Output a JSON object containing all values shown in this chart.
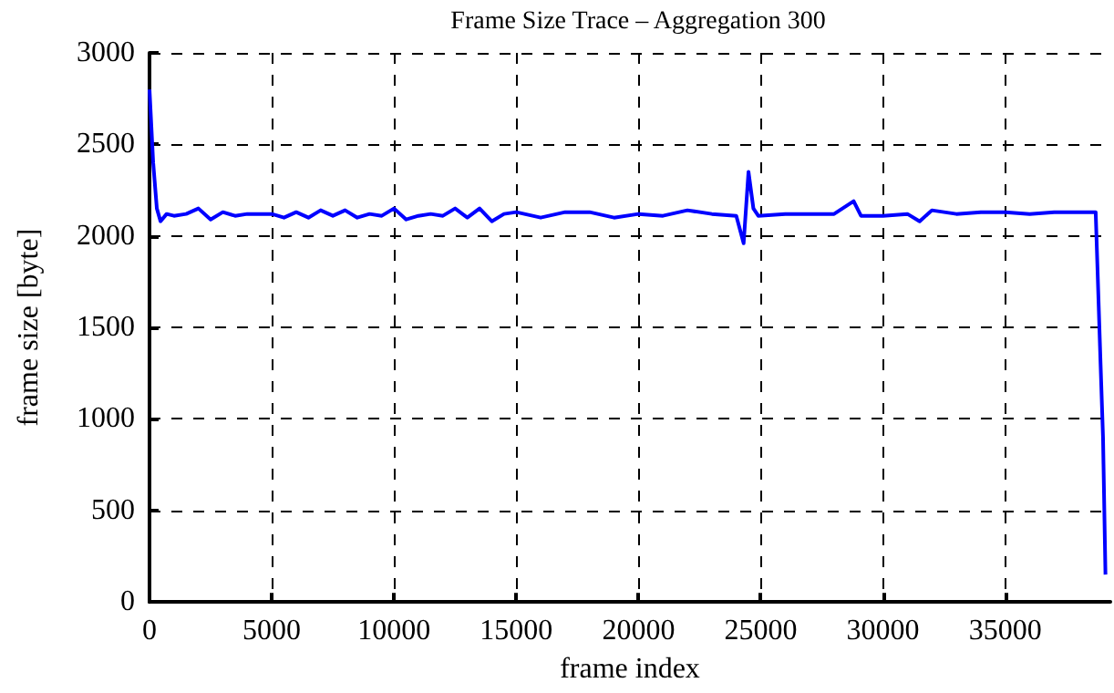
{
  "chart_data": {
    "type": "line",
    "title": "Frame Size Trace – Aggregation 300",
    "xlabel": "frame index",
    "ylabel": "frame size [byte]",
    "x": [
      0,
      150,
      300,
      450,
      700,
      1000,
      1500,
      2000,
      2500,
      3000,
      3500,
      4000,
      5000,
      5500,
      6000,
      6500,
      7000,
      7500,
      8000,
      8500,
      9000,
      9500,
      10000,
      10500,
      11000,
      11500,
      12000,
      12500,
      13000,
      13500,
      14000,
      14500,
      15000,
      16000,
      17000,
      18000,
      19000,
      20000,
      21000,
      22000,
      23000,
      24000,
      24300,
      24500,
      24700,
      24900,
      26000,
      27000,
      28000,
      28800,
      29100,
      30000,
      31000,
      31500,
      32000,
      33000,
      34000,
      35000,
      36000,
      37000,
      38000,
      38700,
      38900,
      39000,
      39100
    ],
    "series": [
      {
        "color": "#0000ff",
        "values": [
          2800,
          2400,
          2150,
          2080,
          2120,
          2110,
          2120,
          2150,
          2090,
          2130,
          2110,
          2120,
          2120,
          2100,
          2130,
          2100,
          2140,
          2110,
          2140,
          2100,
          2120,
          2110,
          2150,
          2090,
          2110,
          2120,
          2110,
          2150,
          2100,
          2150,
          2080,
          2120,
          2130,
          2100,
          2130,
          2130,
          2100,
          2120,
          2110,
          2140,
          2120,
          2110,
          1960,
          2350,
          2150,
          2110,
          2120,
          2120,
          2120,
          2190,
          2110,
          2110,
          2120,
          2080,
          2140,
          2120,
          2130,
          2130,
          2120,
          2130,
          2130,
          2130,
          1300,
          900,
          150
        ]
      }
    ],
    "xlim": [
      0,
      39300
    ],
    "xticks": [
      0,
      5000,
      10000,
      15000,
      20000,
      25000,
      30000,
      35000
    ],
    "ylim": [
      0,
      3000
    ],
    "yticks": [
      0,
      500,
      1000,
      1500,
      2000,
      2500,
      3000
    ],
    "grid": true,
    "marker": "none",
    "line_style": "solid"
  }
}
